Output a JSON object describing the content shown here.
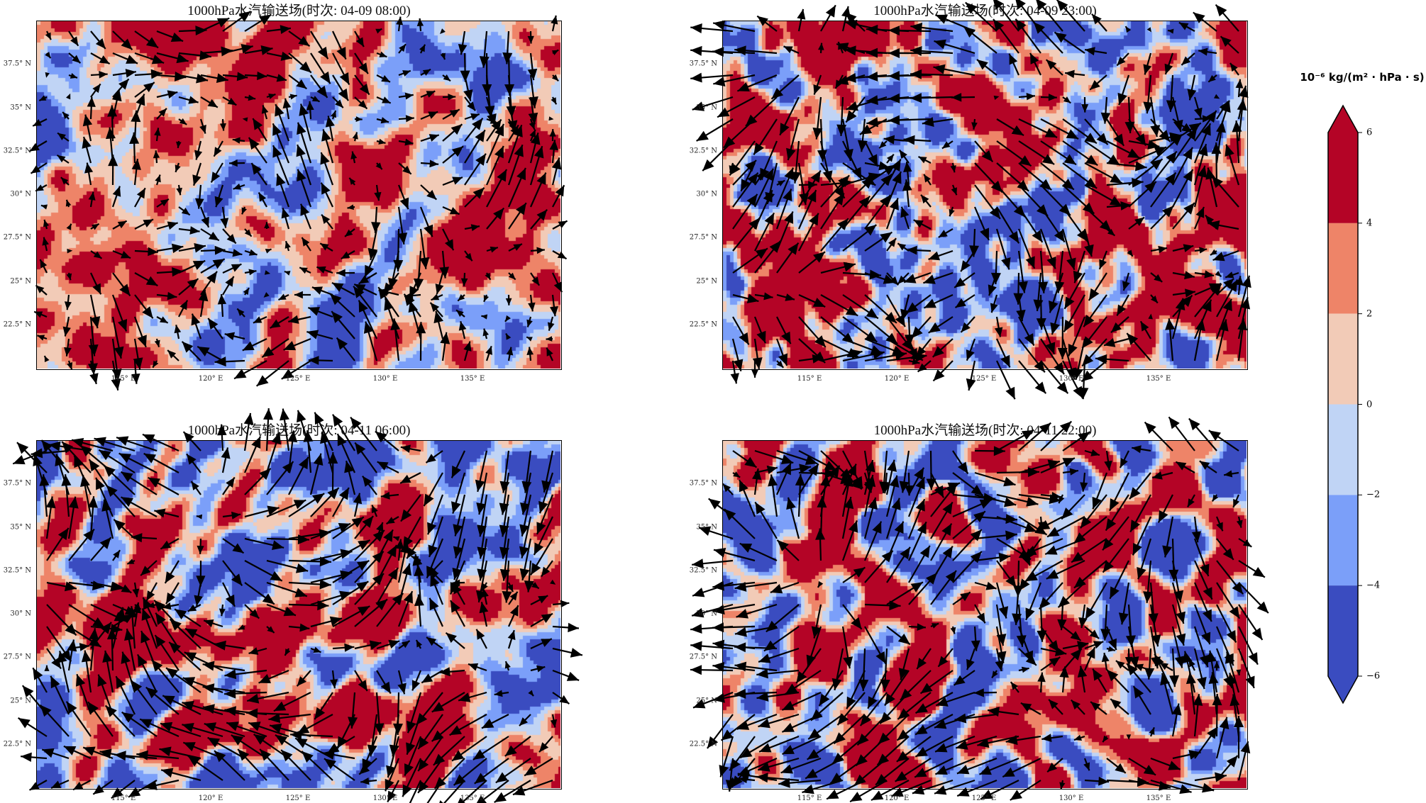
{
  "chart_data": {
    "type": "heatmap",
    "subtype": "filled-contour-with-quiver",
    "panels": [
      {
        "title": "1000hPa水汽输送场(时次: 04-09 08:00)",
        "intensity": 0.75,
        "seed": 1
      },
      {
        "title": "1000hPa水汽输送场(时次: 04-09 23:00)",
        "intensity": 1.25,
        "seed": 2
      },
      {
        "title": "1000hPa水汽输送场(时次: 04-11 06:00)",
        "intensity": 1.2,
        "seed": 3
      },
      {
        "title": "1000hPa水汽输送场(时次: 04-11 22:00)",
        "intensity": 1.3,
        "seed": 4
      }
    ],
    "xlim": [
      110,
      140
    ],
    "ylim": [
      20,
      40
    ],
    "xticks": [
      115,
      120,
      125,
      130,
      135
    ],
    "xtick_labels": [
      "115° E",
      "120° E",
      "125° E",
      "130° E",
      "135° E"
    ],
    "yticks": [
      22.5,
      25,
      27.5,
      30,
      32.5,
      35,
      37.5
    ],
    "ytick_labels": [
      "22.5° N",
      "25° N",
      "27.5° N",
      "30° N",
      "32.5° N",
      "35° N",
      "37.5° N"
    ],
    "colorbar": {
      "title": "10⁻⁶ kg/(m² · hPa · s)",
      "levels": [
        -6,
        -4,
        -2,
        0,
        2,
        4,
        6
      ],
      "tick_labels": [
        "6",
        "4",
        "2",
        "0",
        "−2",
        "−4",
        "−6"
      ],
      "colors": [
        "#3a4cc0",
        "#7b9ff9",
        "#c0d4f5",
        "#f2cbb7",
        "#ee8468",
        "#b40426"
      ],
      "extend": "both"
    }
  }
}
